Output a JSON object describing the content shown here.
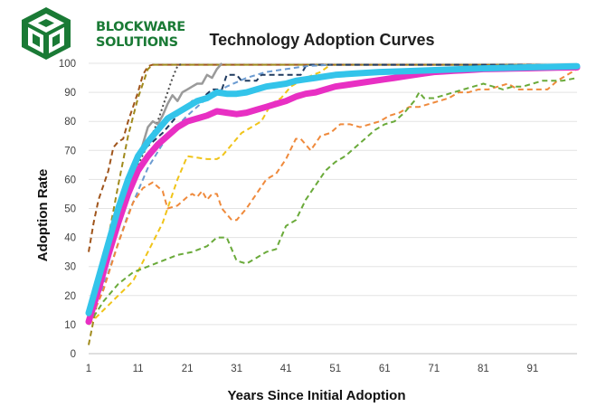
{
  "logo": {
    "line1": "BLOCKWARE",
    "line2": "SOLUTIONS",
    "color": "#1a7a35"
  },
  "chart_data": {
    "type": "line",
    "title": "Technology Adoption Curves",
    "xlabel": "Years Since Initial Adoption",
    "ylabel": "Adoption Rate",
    "xlim": [
      1,
      100
    ],
    "ylim": [
      0,
      100
    ],
    "xticks": [
      1,
      11,
      21,
      31,
      41,
      51,
      61,
      71,
      81,
      91
    ],
    "yticks": [
      0,
      10,
      20,
      30,
      40,
      50,
      60,
      70,
      80,
      90,
      100
    ],
    "grid": "horizontal",
    "legend": "none",
    "series": [
      {
        "name": "dark orange (dashed)",
        "color": "#a0551c",
        "style": "dashed",
        "x": [
          1,
          2,
          3,
          4,
          5,
          6,
          7,
          8,
          9,
          10,
          11,
          12,
          13,
          14,
          16,
          20,
          30,
          40,
          50,
          60,
          70,
          80,
          90,
          100
        ],
        "y": [
          35,
          45,
          53,
          58,
          63,
          71,
          73,
          74,
          80,
          85,
          90,
          96,
          99,
          99.5,
          99.5,
          99.5,
          99.5,
          99.5,
          99.5,
          99.5,
          99.5,
          99.5,
          99.5,
          99.5
        ]
      },
      {
        "name": "olive (dashed)",
        "color": "#a08a1c",
        "style": "dashed",
        "x": [
          1,
          3,
          5,
          7,
          9,
          11,
          13,
          14,
          15,
          20,
          30,
          40,
          50,
          60,
          70,
          80,
          90,
          100
        ],
        "y": [
          3,
          20,
          40,
          58,
          75,
          88,
          98,
          99.5,
          99.5,
          99.5,
          99.5,
          99.5,
          99.5,
          99.5,
          99.5,
          99.5,
          99.5,
          99.5
        ]
      },
      {
        "name": "dark dotted",
        "color": "#4a4a4a",
        "style": "dotted",
        "x": [
          11,
          13,
          15,
          17,
          18,
          19,
          20
        ],
        "y": [
          65,
          72,
          80,
          90,
          95,
          99,
          100
        ]
      },
      {
        "name": "gray (solid)",
        "color": "#9a9a9a",
        "style": "solid",
        "x": [
          1,
          5,
          9,
          13,
          14,
          15,
          16,
          17,
          18,
          19,
          20,
          21,
          22,
          23,
          24,
          25,
          26,
          27,
          28
        ],
        "y": [
          12,
          35,
          55,
          78,
          80,
          79,
          82,
          86,
          89,
          87,
          90,
          91,
          92,
          93,
          93,
          96,
          95,
          98,
          100
        ]
      },
      {
        "name": "navy (dashed)",
        "color": "#1f3a5f",
        "style": "dashed",
        "x": [
          1,
          5,
          9,
          12,
          14,
          16,
          18,
          20,
          22,
          24,
          26,
          28,
          29,
          30,
          31,
          32,
          34,
          35,
          36,
          38,
          40,
          42,
          44,
          45,
          46,
          50,
          60,
          70,
          80,
          90,
          100
        ],
        "y": [
          12,
          35,
          58,
          70,
          73,
          76,
          80,
          84,
          87,
          88,
          91,
          91,
          96,
          96,
          96,
          94,
          94,
          94,
          96,
          96,
          96,
          96,
          96,
          99,
          99.5,
          99.5,
          99.5,
          99.5,
          99.5,
          99.5,
          99.5
        ]
      },
      {
        "name": "light blue (dashed)",
        "color": "#6b9bd1",
        "style": "dashed",
        "x": [
          1,
          5,
          9,
          13,
          17,
          21,
          25,
          29,
          33,
          37,
          41,
          45,
          50
        ],
        "y": [
          10,
          28,
          48,
          64,
          75,
          82,
          88,
          92,
          95,
          97,
          98,
          99,
          99.5
        ]
      },
      {
        "name": "yellow (dashed)",
        "color": "#f0c419",
        "style": "dashed",
        "x": [
          1,
          4,
          7,
          10,
          13,
          16,
          19,
          21,
          23,
          25,
          27,
          28,
          30,
          32,
          34,
          36,
          38,
          40,
          42,
          45,
          48,
          50
        ],
        "y": [
          10,
          15,
          20,
          25,
          35,
          45,
          60,
          68,
          67.5,
          67,
          67,
          68,
          72,
          76,
          78,
          80,
          86,
          88,
          92,
          95,
          97,
          99.5
        ]
      },
      {
        "name": "orange (dashed)",
        "color": "#ef8a3c",
        "style": "dashed",
        "x": [
          1,
          4,
          7,
          10,
          12,
          13,
          14,
          16,
          17,
          19,
          21,
          22,
          23,
          24,
          25,
          26,
          27,
          28,
          30,
          31,
          33,
          35,
          37,
          39,
          41,
          43,
          44,
          46,
          48,
          50,
          52,
          54,
          56,
          58,
          60,
          62,
          64,
          66,
          68,
          70,
          72,
          74,
          76,
          78,
          80,
          82,
          84,
          86,
          88,
          90,
          92,
          94,
          96,
          98,
          100
        ],
        "y": [
          10,
          22,
          38,
          52,
          57,
          58,
          59,
          56,
          50,
          51,
          54,
          55,
          54,
          56,
          53,
          55,
          55,
          50,
          46,
          46,
          50,
          55,
          60,
          62,
          67,
          74,
          74,
          70,
          75,
          76,
          79,
          79,
          78,
          79,
          80,
          82,
          83,
          85,
          85,
          86,
          87,
          88,
          90,
          90,
          91,
          91,
          92,
          93,
          91,
          91,
          91,
          91,
          94,
          96,
          98
        ]
      },
      {
        "name": "green (dashed)",
        "color": "#6aaa3a",
        "style": "dashed",
        "x": [
          1,
          4,
          7,
          10,
          13,
          16,
          19,
          22,
          25,
          27,
          29,
          31,
          33,
          35,
          37,
          39,
          41,
          43,
          45,
          47,
          49,
          51,
          53,
          55,
          57,
          59,
          61,
          63,
          65,
          67,
          68,
          69,
          71,
          73,
          75,
          77,
          79,
          81,
          83,
          85,
          87,
          89,
          91,
          93,
          95,
          97,
          100
        ],
        "y": [
          10,
          18,
          24,
          28,
          30,
          32,
          34,
          35,
          37,
          40,
          40,
          32,
          31,
          33,
          35,
          36,
          44,
          46,
          53,
          58,
          63,
          66,
          68,
          71,
          74,
          77,
          79,
          80,
          83,
          87,
          90,
          88,
          88,
          89,
          90,
          91,
          92,
          93,
          92,
          91,
          92,
          92,
          93,
          94,
          94,
          94,
          95
        ]
      },
      {
        "name": "magenta (solid, bold)",
        "color": "#e82fc3",
        "style": "bold",
        "x": [
          1,
          3,
          5,
          7,
          9,
          11,
          13,
          15,
          17,
          19,
          21,
          23,
          25,
          27,
          29,
          31,
          33,
          35,
          37,
          39,
          41,
          43,
          45,
          47,
          49,
          51,
          53,
          55,
          57,
          59,
          61,
          63,
          65,
          67,
          69,
          71,
          73,
          75,
          77,
          79,
          81,
          84,
          87,
          90,
          93,
          96,
          100
        ],
        "y": [
          11,
          22,
          34,
          45,
          55,
          63,
          68,
          72,
          75,
          78,
          80,
          81,
          82,
          83.5,
          83,
          82.5,
          83,
          84,
          85,
          86,
          87,
          88.5,
          89.5,
          90,
          91,
          92,
          92.5,
          93,
          93.5,
          94,
          94.5,
          95,
          95.5,
          96,
          96.5,
          97,
          97.2,
          97.4,
          97.6,
          97.8,
          98,
          98.1,
          98.2,
          98.3,
          98.4,
          98.5,
          98.6
        ]
      },
      {
        "name": "cyan (solid, bold)",
        "color": "#33c4ea",
        "style": "bold",
        "x": [
          1,
          3,
          5,
          7,
          9,
          11,
          13,
          15,
          17,
          19,
          21,
          23,
          25,
          27,
          29,
          31,
          33,
          35,
          37,
          39,
          41,
          43,
          45,
          47,
          49,
          51,
          55,
          60,
          65,
          70,
          75,
          80,
          85,
          90,
          95,
          100
        ],
        "y": [
          14,
          26,
          38,
          50,
          60,
          68,
          73,
          77,
          81,
          83,
          85,
          87,
          88,
          90,
          89.5,
          89.5,
          90,
          91,
          92,
          92.5,
          93,
          94,
          94.5,
          95,
          95.5,
          96,
          96.5,
          97,
          97.3,
          97.6,
          97.9,
          98.2,
          98.4,
          98.6,
          98.8,
          99
        ]
      }
    ]
  }
}
